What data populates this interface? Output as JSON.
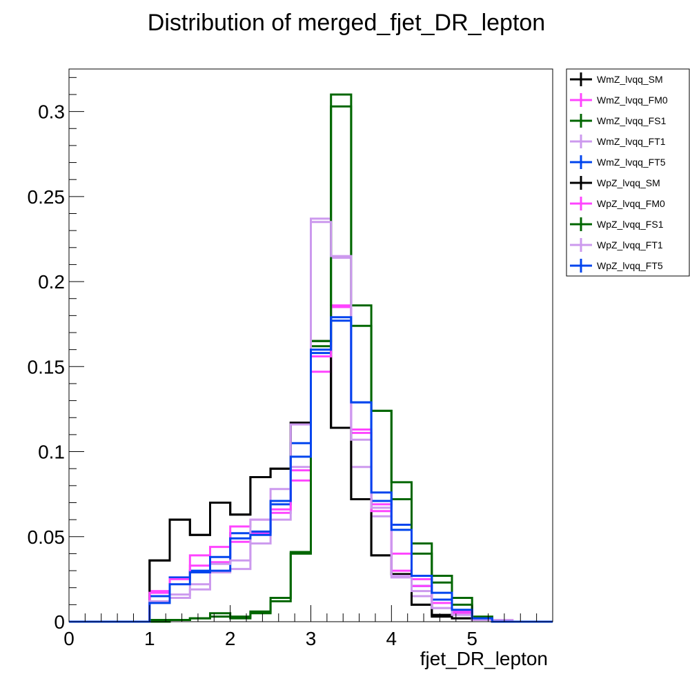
{
  "chart_data": {
    "type": "step",
    "title": "Distribution of merged_fjet_DR_lepton",
    "xlabel": "fjet_DR_lepton",
    "ylabel": "",
    "xlim": [
      0,
      6
    ],
    "ylim": [
      0,
      0.325
    ],
    "x_ticks": [
      "0",
      "1",
      "2",
      "3",
      "4",
      "5"
    ],
    "y_ticks": [
      "0",
      "0.05",
      "0.1",
      "0.15",
      "0.2",
      "0.25",
      "0.3"
    ],
    "bin_edges": [
      0.0,
      0.25,
      0.5,
      0.75,
      1.0,
      1.25,
      1.5,
      1.75,
      2.0,
      2.25,
      2.5,
      2.75,
      3.0,
      3.25,
      3.5,
      3.75,
      4.0,
      4.25,
      4.5,
      4.75,
      5.0,
      5.25,
      5.5,
      5.75,
      6.0
    ],
    "legend_position": "right",
    "series": [
      {
        "name": "WmZ_lvqq_SM",
        "color": "#000000",
        "values": [
          0,
          0,
          0,
          0,
          0.036,
          0.06,
          0.051,
          0.07,
          0.063,
          0.085,
          0.09,
          0.117,
          0.156,
          0.114,
          0.072,
          0.039,
          0.028,
          0.01,
          0.004,
          0.002,
          0.001,
          0,
          0,
          0
        ]
      },
      {
        "name": "WmZ_lvqq_FM0",
        "color": "#ff44ff",
        "values": [
          0,
          0,
          0,
          0,
          0.018,
          0.026,
          0.033,
          0.035,
          0.047,
          0.052,
          0.064,
          0.089,
          0.147,
          0.186,
          0.111,
          0.069,
          0.04,
          0.025,
          0.013,
          0.005,
          0.002,
          0.001,
          0,
          0
        ]
      },
      {
        "name": "WmZ_lvqq_FS1",
        "color": "#006600",
        "values": [
          0,
          0,
          0,
          0,
          0,
          0.001,
          0.002,
          0.003,
          0.002,
          0.005,
          0.012,
          0.04,
          0.162,
          0.303,
          0.174,
          0.124,
          0.072,
          0.04,
          0.023,
          0.01,
          0.002,
          0,
          0,
          0
        ]
      },
      {
        "name": "WmZ_lvqq_FT1",
        "color": "#cc99ee",
        "values": [
          0,
          0,
          0,
          0,
          0.011,
          0.014,
          0.019,
          0.029,
          0.031,
          0.046,
          0.06,
          0.091,
          0.237,
          0.214,
          0.091,
          0.062,
          0.026,
          0.015,
          0.008,
          0.004,
          0.002,
          0.001,
          0,
          0
        ]
      },
      {
        "name": "WmZ_lvqq_FT5",
        "color": "#0044ee",
        "values": [
          0,
          0,
          0,
          0,
          0.015,
          0.026,
          0.03,
          0.03,
          0.052,
          0.053,
          0.069,
          0.105,
          0.158,
          0.177,
          0.129,
          0.071,
          0.057,
          0.021,
          0.013,
          0.006,
          0.002,
          0,
          0,
          0
        ]
      },
      {
        "name": "WpZ_lvqq_SM",
        "color": "#000000",
        "values": [
          0,
          0,
          0,
          0,
          0.036,
          0.06,
          0.051,
          0.07,
          0.063,
          0.085,
          0.09,
          0.117,
          0.165,
          0.114,
          0.072,
          0.039,
          0.028,
          0.01,
          0.003,
          0.002,
          0.001,
          0,
          0,
          0
        ]
      },
      {
        "name": "WpZ_lvqq_FM0",
        "color": "#ff44ff",
        "values": [
          0,
          0,
          0,
          0,
          0.017,
          0.025,
          0.039,
          0.044,
          0.056,
          0.06,
          0.066,
          0.083,
          0.156,
          0.185,
          0.113,
          0.065,
          0.03,
          0.021,
          0.011,
          0.006,
          0.002,
          0.001,
          0,
          0
        ]
      },
      {
        "name": "WpZ_lvqq_FS1",
        "color": "#006600",
        "values": [
          0,
          0,
          0,
          0,
          0.001,
          0.001,
          0.002,
          0.005,
          0.003,
          0.006,
          0.014,
          0.041,
          0.165,
          0.31,
          0.186,
          0.124,
          0.082,
          0.046,
          0.027,
          0.014,
          0.003,
          0,
          0,
          0
        ]
      },
      {
        "name": "WpZ_lvqq_FT1",
        "color": "#cc99ee",
        "values": [
          0,
          0,
          0,
          0,
          0.012,
          0.016,
          0.022,
          0.034,
          0.036,
          0.06,
          0.078,
          0.116,
          0.235,
          0.215,
          0.107,
          0.067,
          0.027,
          0.018,
          0.008,
          0.004,
          0.001,
          0.001,
          0,
          0
        ]
      },
      {
        "name": "WpZ_lvqq_FT5",
        "color": "#0044ee",
        "values": [
          0,
          0,
          0,
          0,
          0.011,
          0.022,
          0.029,
          0.038,
          0.049,
          0.051,
          0.071,
          0.097,
          0.16,
          0.179,
          0.129,
          0.076,
          0.054,
          0.027,
          0.017,
          0.007,
          0.002,
          0,
          0,
          0
        ]
      }
    ]
  }
}
